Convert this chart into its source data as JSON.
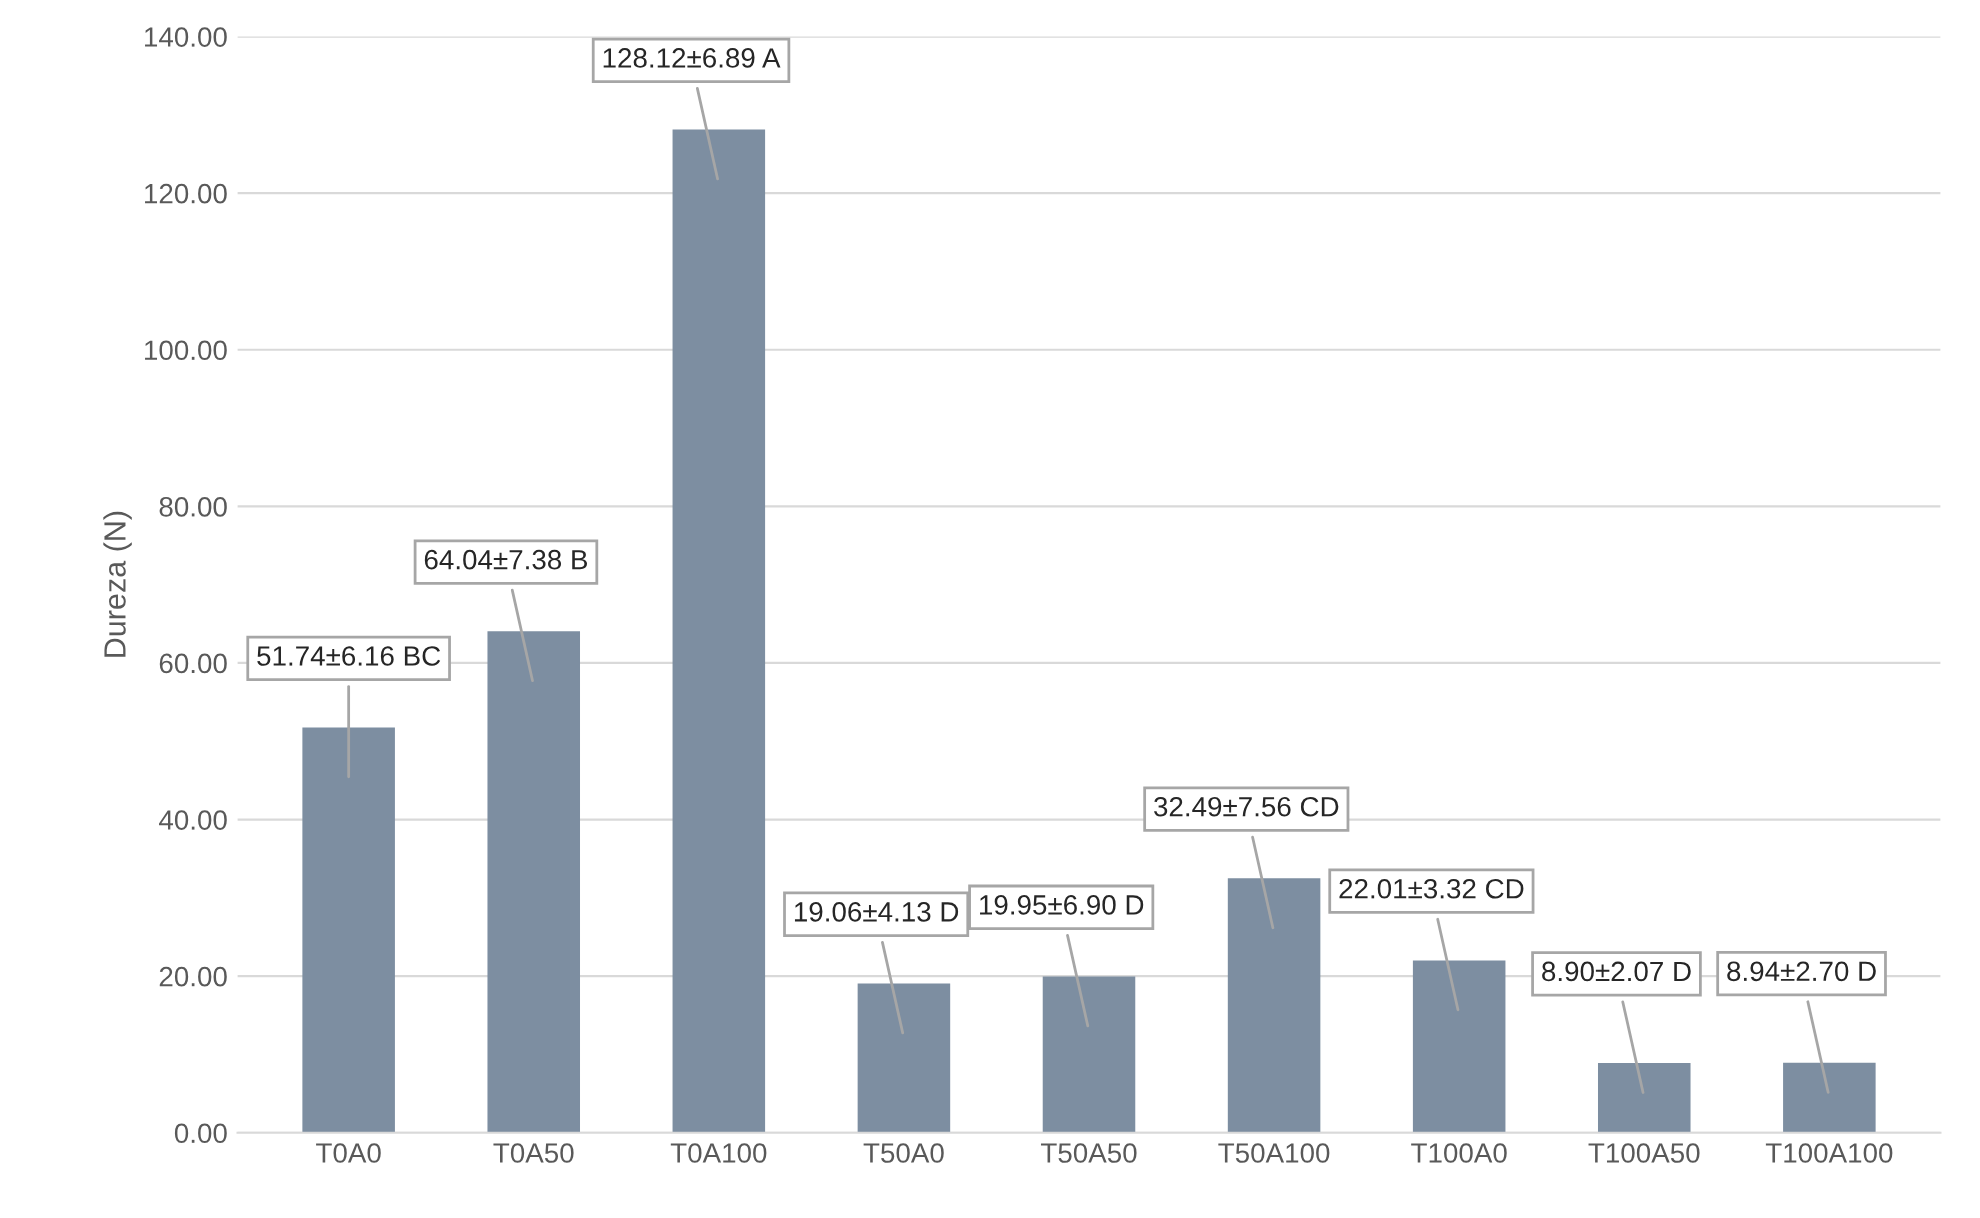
{
  "chart_data": {
    "type": "bar",
    "ylabel": "Dureza (N)",
    "categories": [
      "T0A0",
      "T0A50",
      "T0A100",
      "T50A0",
      "T50A50",
      "T50A100",
      "T100A0",
      "T100A50",
      "T100A100"
    ],
    "values": [
      51.74,
      64.04,
      128.12,
      19.06,
      19.95,
      32.49,
      22.01,
      8.9,
      8.94
    ],
    "value_labels": [
      "51.74±6.16 BC",
      "64.04±7.38 B",
      "128.12±6.89 A",
      "19.06±4.13 D",
      "19.95±6.90 D",
      "32.49±7.56 CD",
      "22.01±3.32 CD",
      "8.90±2.07 D",
      "8.94±2.70 D"
    ],
    "color": "#7d8ea1",
    "ylim": [
      0,
      140
    ],
    "yticks": [
      {
        "value": 0,
        "label": "0.00"
      },
      {
        "value": 20,
        "label": "20.00"
      },
      {
        "value": 40,
        "label": "40.00"
      },
      {
        "value": 60,
        "label": "60.00"
      },
      {
        "value": 80,
        "label": "80.00"
      },
      {
        "value": 100,
        "label": "100.00"
      },
      {
        "value": 120,
        "label": "120.00"
      },
      {
        "value": 140,
        "label": "140.00"
      }
    ],
    "grid": "y"
  }
}
